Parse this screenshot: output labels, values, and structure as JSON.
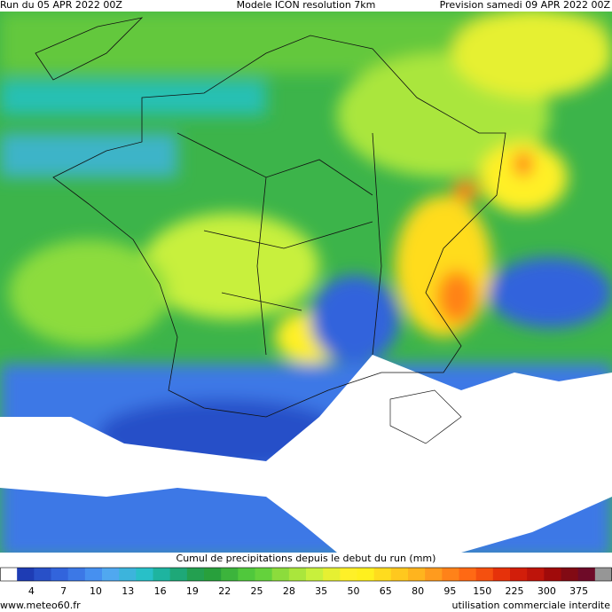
{
  "header": {
    "run": "Run du 05 APR 2022 00Z",
    "model": "Modele ICON resolution 7km",
    "forecast": "Prevision samedi 09 APR 2022 00Z"
  },
  "legend": {
    "title": "Cumul de precipitations depuis le debut du run (mm)",
    "ticks": [
      4,
      7,
      10,
      13,
      16,
      19,
      22,
      25,
      28,
      35,
      50,
      65,
      80,
      95,
      150,
      225,
      300,
      375
    ],
    "colors": [
      "#ffffff",
      "#1e3cb4",
      "#2850c8",
      "#3264dc",
      "#3c78e6",
      "#4690f0",
      "#50a8f0",
      "#3cb4dc",
      "#28c0c8",
      "#1eb4a0",
      "#1ea878",
      "#23a050",
      "#28a03c",
      "#3cb43c",
      "#50c83c",
      "#64d23c",
      "#8cdc3c",
      "#aae63c",
      "#c8f03c",
      "#e6f032",
      "#fff028",
      "#fff01e",
      "#ffdc1e",
      "#ffc81e",
      "#ffb41e",
      "#ff9b1e",
      "#ff8219",
      "#ff6914",
      "#f5500f",
      "#e6320a",
      "#d21e0a",
      "#be140a",
      "#a00a0a",
      "#820a14",
      "#6e0a28",
      "#969696"
    ]
  },
  "footer": {
    "site": "www.meteo60.fr",
    "notice": "utilisation commerciale interdite"
  }
}
